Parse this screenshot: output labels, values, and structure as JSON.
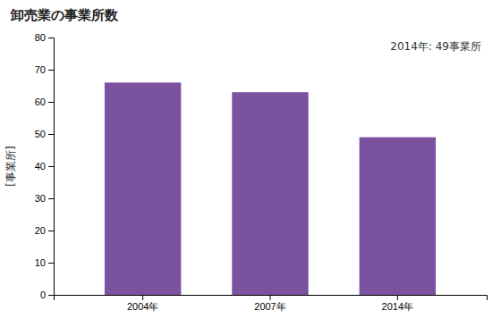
{
  "chart_data": {
    "type": "bar",
    "title": "卸売業の事業所数",
    "ylabel": "[事業所]",
    "annotation": "2014年: 49事業所",
    "categories": [
      "2004年",
      "2007年",
      "2014年"
    ],
    "values": [
      66,
      63,
      49
    ],
    "color": "#7B52A0",
    "ylim": [
      0,
      80
    ],
    "yticks": [
      0,
      10,
      20,
      30,
      40,
      50,
      60,
      70,
      80
    ],
    "grid": false
  }
}
